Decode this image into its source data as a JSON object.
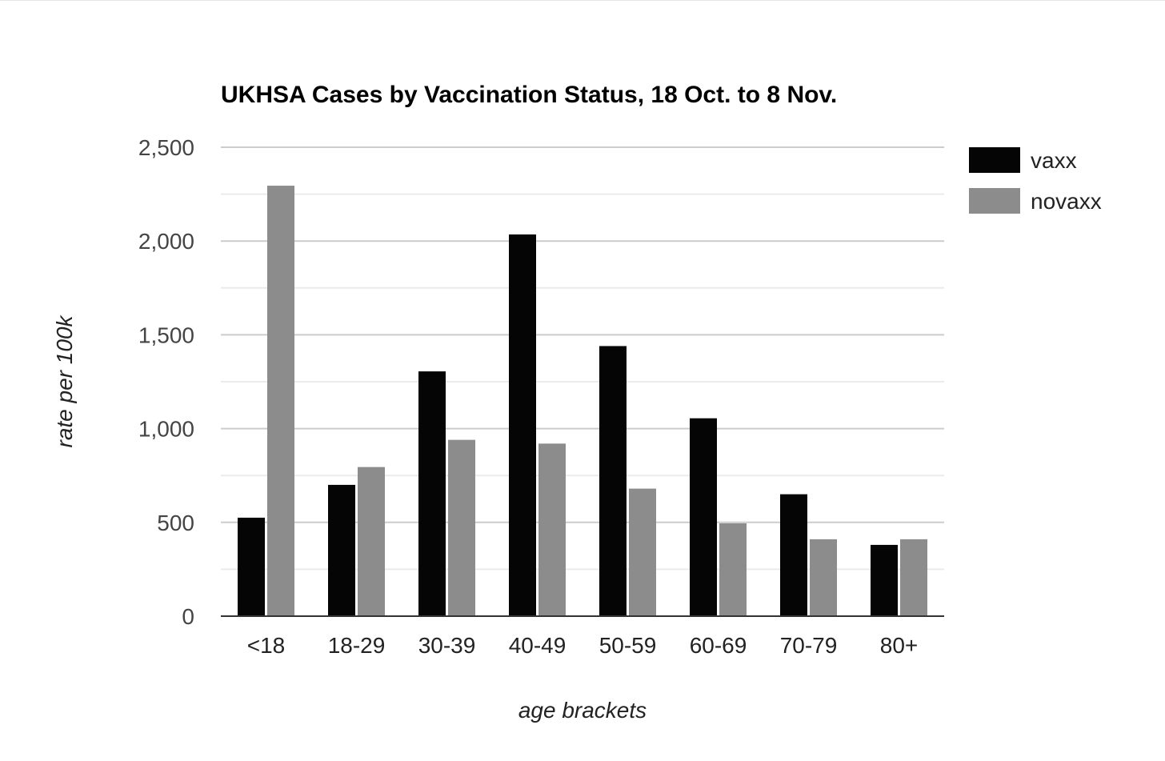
{
  "chart_data": {
    "type": "bar",
    "title": "UKHSA Cases by Vaccination Status, 18 Oct. to 8 Nov.",
    "xlabel": "age brackets",
    "ylabel": "rate per 100k",
    "ylim": [
      0,
      2500
    ],
    "yticks": [
      0,
      500,
      1000,
      1500,
      2000,
      2500
    ],
    "ytick_labels": [
      "0",
      "500",
      "1,000",
      "1,500",
      "2,000",
      "2,500"
    ],
    "categories": [
      "<18",
      "18-29",
      "30-39",
      "40-49",
      "50-59",
      "60-69",
      "70-79",
      "80+"
    ],
    "series": [
      {
        "name": "vaxx",
        "color": "#050505",
        "values": [
          525,
          700,
          1305,
          2035,
          1440,
          1055,
          650,
          380
        ]
      },
      {
        "name": "novaxx",
        "color": "#8c8c8c",
        "values": [
          2295,
          795,
          940,
          920,
          680,
          495,
          410,
          410
        ]
      }
    ],
    "grid": true,
    "legend_position": "right"
  }
}
